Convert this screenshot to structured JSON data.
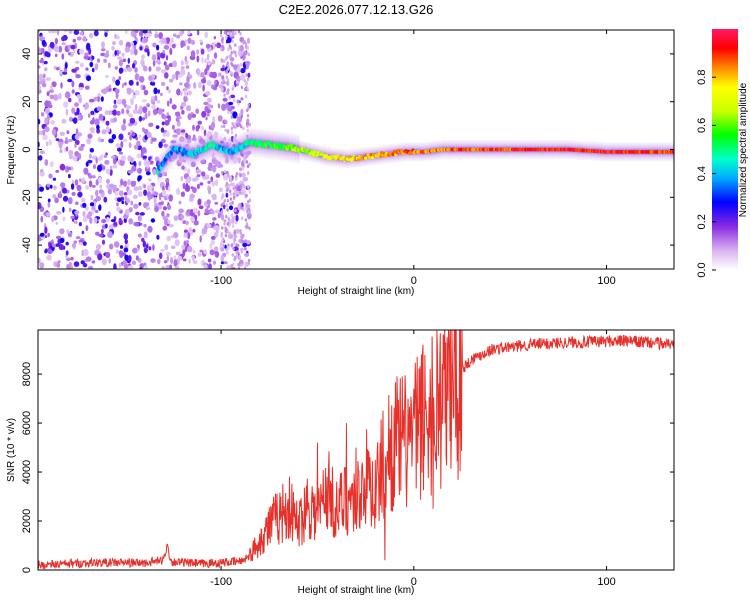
{
  "title": "C2E2.2026.077.12.13.G26",
  "colors": {
    "snr_line": "#e8302a",
    "background": "#ffffff",
    "frame": "#000000"
  },
  "chart_data": [
    {
      "type": "heatmap",
      "name": "spectrogram",
      "xlabel": "Height of straight line (km)",
      "ylabel": "Frequency (Hz)",
      "xlim": [
        -195,
        135
      ],
      "ylim": [
        -50,
        50
      ],
      "xticks": [
        -100,
        0,
        100
      ],
      "xtick_labels": [
        "-100",
        "0",
        "100"
      ],
      "yticks": [
        -40,
        -20,
        0,
        20,
        40
      ],
      "ytick_labels": [
        "-40",
        "-20",
        "0",
        "20",
        "40"
      ],
      "noise_region_x": [
        -195,
        -85
      ],
      "signal_start_x": -133,
      "trace": {
        "x": [
          -133,
          -125,
          -115,
          -105,
          -95,
          -85,
          -75,
          -65,
          -55,
          -45,
          -35,
          -25,
          -15,
          -5,
          5,
          15,
          25,
          40,
          60,
          80,
          100,
          120,
          135
        ],
        "freq": [
          -9,
          0,
          -2,
          2,
          -1,
          3,
          2,
          1,
          -1,
          -3,
          -4,
          -3,
          -2,
          -1,
          -1,
          0,
          0,
          0,
          0,
          0,
          -1,
          -1,
          -1
        ],
        "amplitude": [
          0.4,
          0.35,
          0.4,
          0.45,
          0.35,
          0.5,
          0.55,
          0.6,
          0.65,
          0.7,
          0.78,
          0.8,
          0.82,
          0.85,
          0.83,
          0.85,
          0.88,
          0.88,
          0.9,
          0.92,
          0.93,
          0.9,
          0.88
        ]
      }
    },
    {
      "type": "colorbar",
      "name": "amplitude-colorbar",
      "label": "Normalized spectral amplitude",
      "range": [
        0.0,
        1.0
      ],
      "ticks": [
        0.0,
        0.2,
        0.4,
        0.6,
        0.8
      ],
      "tick_labels": [
        "0.0",
        "0.2",
        "0.4",
        "0.6",
        "0.8"
      ]
    },
    {
      "type": "line",
      "name": "snr",
      "xlabel": "Height of straight line (km)",
      "ylabel": "SNR (10 * v/v)",
      "xlim": [
        -195,
        135
      ],
      "ylim": [
        0,
        9800
      ],
      "xticks": [
        -100,
        0,
        100
      ],
      "xtick_labels": [
        "-100",
        "0",
        "100"
      ],
      "yticks": [
        0,
        2000,
        4000,
        6000,
        8000
      ],
      "ytick_labels": [
        "0",
        "2000",
        "4000",
        "6000",
        "8000"
      ],
      "series": [
        {
          "name": "SNR",
          "x": [
            -195,
            -180,
            -165,
            -150,
            -140,
            -130,
            -128,
            -126,
            -120,
            -110,
            -100,
            -90,
            -85,
            -80,
            -75,
            -70,
            -65,
            -60,
            -55,
            -50,
            -45,
            -40,
            -35,
            -30,
            -25,
            -20,
            -15,
            -10,
            -5,
            0,
            5,
            10,
            15,
            20,
            25,
            30,
            40,
            50,
            60,
            70,
            80,
            90,
            100,
            110,
            120,
            130,
            135
          ],
          "values": [
            200,
            250,
            300,
            300,
            280,
            400,
            1000,
            350,
            300,
            250,
            300,
            350,
            600,
            1200,
            1800,
            2200,
            2600,
            1800,
            2800,
            2200,
            3400,
            2400,
            3000,
            2800,
            3800,
            3200,
            4600,
            5200,
            5200,
            5600,
            6200,
            6600,
            7200,
            7600,
            8200,
            8600,
            9000,
            9100,
            9200,
            9250,
            9300,
            9300,
            9350,
            9350,
            9300,
            9250,
            9200
          ],
          "spikes": [
            {
              "x": -50,
              "value": 5200
            },
            {
              "x": -35,
              "value": 6000
            },
            {
              "x": -30,
              "value": 5000
            },
            {
              "x": -15,
              "value": 9100
            },
            {
              "x": 0,
              "value": 7400
            },
            {
              "x": 10,
              "value": 7900
            },
            {
              "x": 25,
              "value": 9800
            }
          ],
          "dips": [
            {
              "x": 10,
              "value": 2500
            },
            {
              "x": -15,
              "value": 400
            }
          ]
        }
      ]
    }
  ]
}
